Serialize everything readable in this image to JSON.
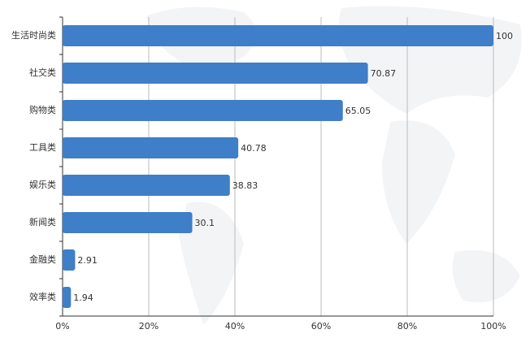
{
  "chart_data": {
    "type": "bar",
    "orientation": "horizontal",
    "categories": [
      "生活时尚类",
      "社交类",
      "购物类",
      "工具类",
      "娱乐类",
      "新闻类",
      "金融类",
      "效率类"
    ],
    "values": [
      100,
      70.87,
      65.05,
      40.78,
      38.83,
      30.1,
      2.91,
      1.94
    ],
    "color": "#3f7ec8",
    "xlim": [
      0,
      100
    ],
    "xticks": [
      {
        "value": 0,
        "label": "0%"
      },
      {
        "value": 20,
        "label": "20%"
      },
      {
        "value": 40,
        "label": "40%"
      },
      {
        "value": 60,
        "label": "60%"
      },
      {
        "value": 80,
        "label": "80%"
      },
      {
        "value": 100,
        "label": "100%"
      }
    ],
    "grid": true
  }
}
